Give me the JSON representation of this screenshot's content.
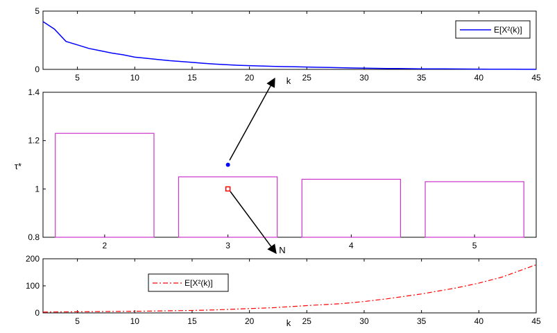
{
  "chart_data": [
    {
      "type": "line",
      "xlabel": "k",
      "ylabel": "",
      "xlim": [
        2,
        45
      ],
      "ylim": [
        0,
        5
      ],
      "xticks": [
        5,
        10,
        15,
        20,
        25,
        30,
        35,
        40,
        45
      ],
      "yticks": [
        0,
        5
      ],
      "legend_position": "top-right",
      "series": [
        {
          "name": "E[X²(k)]",
          "color": "#0000ff",
          "style": "solid",
          "x": [
            2,
            3,
            4,
            5,
            6,
            7,
            8,
            9,
            10,
            11,
            12,
            13,
            14,
            15,
            16,
            17,
            18,
            19,
            20,
            21,
            22,
            23,
            24,
            25,
            26,
            27,
            28,
            29,
            30,
            31,
            32,
            33,
            34,
            35,
            36,
            37,
            38,
            39,
            40,
            41,
            42,
            43,
            44,
            45
          ],
          "y": [
            4.1,
            3.45,
            2.4,
            2.1,
            1.8,
            1.6,
            1.4,
            1.25,
            1.05,
            0.95,
            0.85,
            0.75,
            0.68,
            0.6,
            0.52,
            0.45,
            0.4,
            0.35,
            0.32,
            0.29,
            0.26,
            0.24,
            0.22,
            0.2,
            0.18,
            0.16,
            0.14,
            0.12,
            0.1,
            0.09,
            0.08,
            0.07,
            0.06,
            0.05,
            0.045,
            0.04,
            0.035,
            0.03,
            0.025,
            0.02,
            0.015,
            0.01,
            0.008,
            0.005
          ]
        }
      ]
    },
    {
      "type": "bar",
      "xlabel": "N",
      "ylabel": "τ*",
      "categories": [
        2,
        3,
        4,
        5
      ],
      "values": [
        1.23,
        1.05,
        1.04,
        1.03
      ],
      "bar_color": "#cc33cc",
      "ylim": [
        0.8,
        1.4
      ],
      "yticks": [
        0.8,
        1,
        1.2,
        1.4
      ],
      "xlim": [
        1.5,
        5.5
      ],
      "points": [
        {
          "x": 3,
          "y": 1.1,
          "color": "#0000ff",
          "marker": "dot"
        },
        {
          "x": 3,
          "y": 1.0,
          "color": "#ff0000",
          "marker": "square"
        }
      ]
    },
    {
      "type": "line",
      "xlabel": "k",
      "ylabel": "",
      "xlim": [
        2,
        45
      ],
      "ylim": [
        0,
        200
      ],
      "xticks": [
        5,
        10,
        15,
        20,
        25,
        30,
        35,
        40,
        45
      ],
      "yticks": [
        0,
        100,
        200
      ],
      "legend_position": "top-left",
      "series": [
        {
          "name": "E[X²(k)]",
          "color": "#ff0000",
          "style": "dash-dot",
          "x": [
            2,
            5,
            10,
            15,
            17,
            20,
            22,
            25,
            28,
            30,
            32,
            35,
            38,
            40,
            42,
            45
          ],
          "y": [
            3,
            4,
            6,
            9,
            11,
            16,
            19,
            27,
            34,
            42,
            52,
            70,
            92,
            110,
            132,
            178
          ]
        }
      ]
    }
  ]
}
